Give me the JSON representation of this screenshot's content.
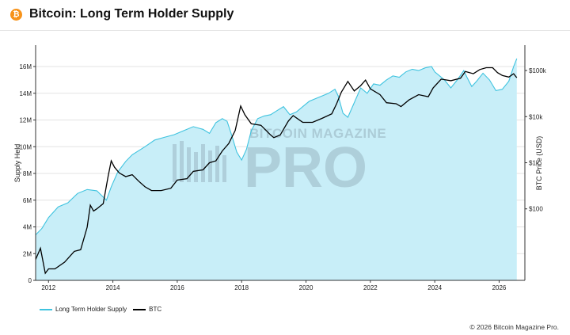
{
  "header": {
    "title": "Bitcoin: Long Term Holder Supply",
    "icon": "bitcoin-icon",
    "icon_glyph": "₿"
  },
  "colors": {
    "supply_line": "#3fc3df",
    "supply_fill": "#c8eef8",
    "btc_line": "#000000",
    "accent": "#f7931a"
  },
  "watermark": {
    "line1": "BITCOIN MAGAZINE",
    "line2": "PRO"
  },
  "footer": {
    "copyright": "© 2026 Bitcoin Magazine Pro."
  },
  "chart_data": {
    "type": "line",
    "title": "Bitcoin: Long Term Holder Supply",
    "xlabel": "",
    "ylabel_left": "Supply Held",
    "ylabel_right": "BTC Price (USD)",
    "x_ticks": [
      "2012",
      "2014",
      "2016",
      "2018",
      "2020",
      "2022",
      "2024",
      "2026"
    ],
    "y_left_ticks": [
      "0",
      "2M",
      "4M",
      "6M",
      "8M",
      "10M",
      "12M",
      "14M",
      "16M"
    ],
    "y_right_ticks": [
      "$100",
      "$1k",
      "$10k",
      "$100k"
    ],
    "xlim": [
      2011.6,
      2026.8
    ],
    "ylim_left": [
      0,
      17600000
    ],
    "ylim_right_log": [
      0.45,
      5.55
    ],
    "right_scale": "log",
    "grid": "horizontal",
    "legend_position": "bottom-left",
    "series": [
      {
        "name": "Long Term Holder Supply",
        "axis": "left",
        "area": true,
        "x": [
          2011.6,
          2011.8,
          2012.0,
          2012.3,
          2012.6,
          2012.9,
          2013.2,
          2013.5,
          2013.8,
          2013.95,
          2014.15,
          2014.4,
          2014.6,
          2014.8,
          2015.0,
          2015.3,
          2015.6,
          2015.9,
          2016.2,
          2016.5,
          2016.8,
          2017.0,
          2017.2,
          2017.4,
          2017.55,
          2017.7,
          2017.85,
          2018.0,
          2018.15,
          2018.3,
          2018.5,
          2018.7,
          2018.9,
          2019.1,
          2019.3,
          2019.5,
          2019.7,
          2019.9,
          2020.1,
          2020.3,
          2020.5,
          2020.7,
          2020.9,
          2021.0,
          2021.15,
          2021.3,
          2021.5,
          2021.7,
          2021.9,
          2022.1,
          2022.3,
          2022.5,
          2022.7,
          2022.9,
          2023.1,
          2023.3,
          2023.5,
          2023.7,
          2023.9,
          2024.0,
          2024.15,
          2024.3,
          2024.5,
          2024.7,
          2024.9,
          2025.0,
          2025.15,
          2025.3,
          2025.5,
          2025.7,
          2025.9,
          2026.1,
          2026.3,
          2026.45,
          2026.55
        ],
        "values": [
          3400000,
          3900000,
          4700000,
          5500000,
          5800000,
          6500000,
          6800000,
          6700000,
          6000000,
          7000000,
          8100000,
          8900000,
          9400000,
          9700000,
          10000000,
          10500000,
          10700000,
          10900000,
          11200000,
          11500000,
          11300000,
          11000000,
          11800000,
          12100000,
          11900000,
          10800000,
          9600000,
          9000000,
          9800000,
          11200000,
          12100000,
          12300000,
          12400000,
          12700000,
          13000000,
          12400000,
          12600000,
          13000000,
          13400000,
          13600000,
          13800000,
          14000000,
          14300000,
          13800000,
          12500000,
          12200000,
          13300000,
          14400000,
          14000000,
          14700000,
          14600000,
          15000000,
          15300000,
          15200000,
          15600000,
          15800000,
          15700000,
          15900000,
          16000000,
          15600000,
          15300000,
          15000000,
          14400000,
          15000000,
          15700000,
          15200000,
          14500000,
          14900000,
          15500000,
          15000000,
          14200000,
          14300000,
          14900000,
          16000000,
          16600000
        ]
      },
      {
        "name": "BTC",
        "axis": "right",
        "x": [
          2011.6,
          2011.75,
          2011.9,
          2012.0,
          2012.2,
          2012.5,
          2012.8,
          2013.0,
          2013.2,
          2013.3,
          2013.4,
          2013.5,
          2013.7,
          2013.85,
          2013.95,
          2014.05,
          2014.2,
          2014.4,
          2014.6,
          2014.8,
          2015.0,
          2015.2,
          2015.5,
          2015.8,
          2016.0,
          2016.3,
          2016.5,
          2016.8,
          2017.0,
          2017.2,
          2017.4,
          2017.6,
          2017.8,
          2017.97,
          2018.1,
          2018.3,
          2018.6,
          2018.9,
          2019.0,
          2019.2,
          2019.45,
          2019.6,
          2019.9,
          2020.2,
          2020.5,
          2020.8,
          2020.95,
          2021.1,
          2021.3,
          2021.5,
          2021.7,
          2021.85,
          2022.0,
          2022.3,
          2022.5,
          2022.8,
          2022.95,
          2023.2,
          2023.5,
          2023.8,
          2023.95,
          2024.2,
          2024.5,
          2024.8,
          2024.95,
          2025.2,
          2025.4,
          2025.6,
          2025.8,
          2025.95,
          2026.1,
          2026.3,
          2026.45,
          2026.55
        ],
        "values": [
          8,
          14,
          4,
          5,
          5,
          7,
          12,
          13,
          40,
          120,
          90,
          100,
          130,
          500,
          1100,
          800,
          600,
          500,
          550,
          400,
          300,
          250,
          250,
          280,
          420,
          450,
          650,
          700,
          1000,
          1100,
          1800,
          2600,
          5000,
          17000,
          11000,
          7000,
          6500,
          4000,
          3500,
          4000,
          8000,
          10500,
          7500,
          7500,
          9200,
          11500,
          19000,
          34000,
          58000,
          36000,
          47000,
          62000,
          40000,
          30000,
          20000,
          19000,
          16500,
          23000,
          30000,
          27000,
          42000,
          65000,
          60000,
          68000,
          95000,
          85000,
          105000,
          115000,
          115000,
          90000,
          78000,
          72000,
          85000,
          70000
        ]
      }
    ]
  }
}
